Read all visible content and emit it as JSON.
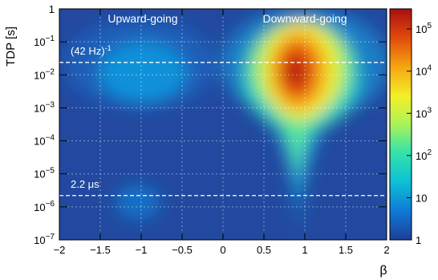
{
  "chart_data": {
    "type": "heatmap",
    "title": "",
    "xlabel": "β",
    "ylabel": "TDP [s]",
    "xlim": [
      -2,
      2
    ],
    "ylim": [
      1e-07,
      1
    ],
    "y_scale": "log",
    "x_ticks": [
      "−2",
      "−1.5",
      "−1",
      "−0.5",
      "0",
      "0.5",
      "1",
      "1.5",
      "2"
    ],
    "x_tick_values": [
      -2,
      -1.5,
      -1,
      -0.5,
      0,
      0.5,
      1,
      1.5,
      2
    ],
    "y_ticks": [
      {
        "base": "10",
        "exp": "−7",
        "value": 1e-07
      },
      {
        "base": "10",
        "exp": "−6",
        "value": 1e-06
      },
      {
        "base": "10",
        "exp": "−5",
        "value": 1e-05
      },
      {
        "base": "10",
        "exp": "−4",
        "value": 0.0001
      },
      {
        "base": "10",
        "exp": "−3",
        "value": 0.001
      },
      {
        "base": "10",
        "exp": "−2",
        "value": 0.01
      },
      {
        "base": "10",
        "exp": "−1",
        "value": 0.1
      },
      {
        "base": "1",
        "exp": "",
        "value": 1
      }
    ],
    "grid": true,
    "colorbar": {
      "scale": "log",
      "range": [
        1,
        300000
      ],
      "ticks": [
        {
          "base": "1",
          "exp": "",
          "value": 1
        },
        {
          "base": "10",
          "exp": "",
          "value": 10
        },
        {
          "base": "10",
          "exp": "2",
          "value": 100
        },
        {
          "base": "10",
          "exp": "3",
          "value": 1000
        },
        {
          "base": "10",
          "exp": "4",
          "value": 10000
        },
        {
          "base": "10",
          "exp": "5",
          "value": 100000
        }
      ],
      "colormap": [
        "#1e3f96",
        "#0f77d6",
        "#0cc0d6",
        "#35e3a9",
        "#aaf25a",
        "#f4f029",
        "#f5a512",
        "#e0470d",
        "#a80f0f"
      ]
    },
    "region_labels": [
      {
        "text": "Upward-going",
        "region": "β < 0"
      },
      {
        "text": "Downward-going",
        "region": "β > 0"
      }
    ],
    "reference_lines": [
      {
        "label_text": "(42 Hz)",
        "label_sup": "-1",
        "value": 0.0238
      },
      {
        "label_text": "2.2 μs",
        "label_sup": "",
        "value": 2.2e-06
      }
    ],
    "blobs": [
      {
        "name": "downward-main",
        "beta": 1.0,
        "log10_tdp": -1.8,
        "peak_log10_counts": 5.4
      },
      {
        "name": "downward-tail",
        "beta": 0.97,
        "log10_tdp": -4.5,
        "peak_log10_counts": 2.5
      },
      {
        "name": "upward-muon",
        "beta": -1.0,
        "log10_tdp": -1.9,
        "peak_log10_counts": 1.6
      },
      {
        "name": "upward-decay",
        "beta": -0.95,
        "log10_tdp": -5.8,
        "peak_log10_counts": 1.0
      }
    ]
  }
}
